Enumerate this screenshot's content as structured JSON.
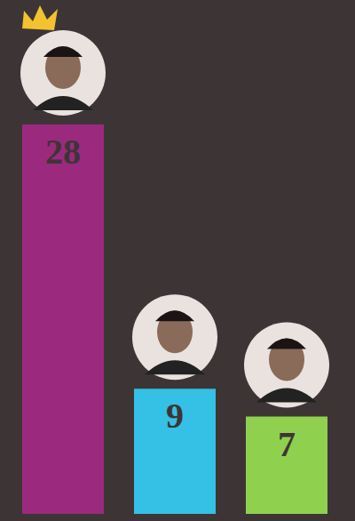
{
  "chart_data": {
    "type": "bar",
    "categories": [
      null,
      null,
      null
    ],
    "values": [
      28,
      9,
      7
    ],
    "colors": [
      "#9b2a7e",
      "#35c0e6",
      "#8fd14f"
    ],
    "ylim": [
      0,
      28
    ],
    "data_labels": true,
    "tick_labels": false
  }
}
